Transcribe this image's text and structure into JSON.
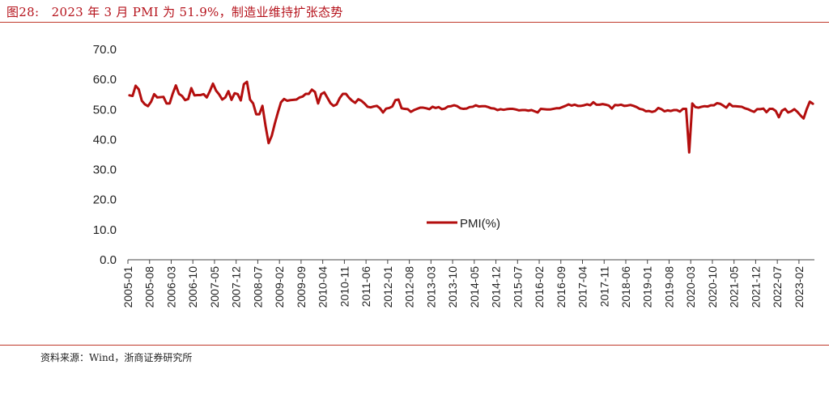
{
  "figure": {
    "title": "图28:　2023 年 3 月 PMI 为 51.9%，制造业维持扩张态势",
    "source": "资料来源：Wind，浙商证券研究所"
  },
  "chart_data": {
    "type": "line",
    "xlabel": "",
    "ylabel": "",
    "ylim": [
      0,
      70
    ],
    "y_ticks": [
      "70.0",
      "60.0",
      "50.0",
      "40.0",
      "30.0",
      "20.0",
      "10.0",
      "0.0"
    ],
    "x_ticks": [
      "2005-01",
      "2005-08",
      "2006-03",
      "2006-10",
      "2007-05",
      "2007-12",
      "2008-07",
      "2009-02",
      "2009-09",
      "2010-04",
      "2010-11",
      "2011-06",
      "2012-01",
      "2012-08",
      "2013-03",
      "2013-10",
      "2014-05",
      "2014-12",
      "2015-07",
      "2016-02",
      "2016-09",
      "2017-04",
      "2017-11",
      "2018-06",
      "2019-01",
      "2019-08",
      "2020-03",
      "2020-10",
      "2021-05",
      "2021-12",
      "2022-07",
      "2023-02"
    ],
    "grid": false,
    "legend_position": "center",
    "color": "#b30e0e",
    "series": [
      {
        "name": "PMI(%)",
        "x_start": "2005-01",
        "x_end": "2023-03",
        "values": [
          54.7,
          54.5,
          57.9,
          56.7,
          52.9,
          51.7,
          51.1,
          52.6,
          55.1,
          54.0,
          54.1,
          54.2,
          52.0,
          52.0,
          55.3,
          58.0,
          55.2,
          54.5,
          53.1,
          53.5,
          57.1,
          54.7,
          54.8,
          54.8,
          55.1,
          54.0,
          56.1,
          58.6,
          56.3,
          55.0,
          53.3,
          54.0,
          56.1,
          53.2,
          55.4,
          55.1,
          53.0,
          58.4,
          59.2,
          53.3,
          52.0,
          48.4,
          48.4,
          51.2,
          44.6,
          38.8,
          41.2,
          45.3,
          49.0,
          52.4,
          53.5,
          52.9,
          53.1,
          53.2,
          53.3,
          54.0,
          54.3,
          55.2,
          55.2,
          56.6,
          55.8,
          52.0,
          55.1,
          55.7,
          53.9,
          52.1,
          51.2,
          51.7,
          53.8,
          55.2,
          55.2,
          53.9,
          52.9,
          52.2,
          53.4,
          52.9,
          52.0,
          50.9,
          50.7,
          51.0,
          51.2,
          50.4,
          49.0,
          50.3,
          50.5,
          51.0,
          53.1,
          53.3,
          50.4,
          50.2,
          50.1,
          49.2,
          49.8,
          50.2,
          50.6,
          50.6,
          50.4,
          50.1,
          50.9,
          50.5,
          50.8,
          50.1,
          50.3,
          51.0,
          51.1,
          51.4,
          51.1,
          50.4,
          50.2,
          50.3,
          50.8,
          50.9,
          51.4,
          51.0,
          51.1,
          51.1,
          50.8,
          50.4,
          50.3,
          49.8,
          50.1,
          49.9,
          50.1,
          50.2,
          50.2,
          50.0,
          49.7,
          49.8,
          49.8,
          49.6,
          49.8,
          49.4,
          49.0,
          50.2,
          50.1,
          50.0,
          50.0,
          50.2,
          50.4,
          50.4,
          50.8,
          51.2,
          51.7,
          51.3,
          51.6,
          51.2,
          51.2,
          51.4,
          51.7,
          51.4,
          52.4,
          51.6,
          51.6,
          51.8,
          51.6,
          51.3,
          50.3,
          51.5,
          51.4,
          51.6,
          51.2,
          51.3,
          51.5,
          51.2,
          50.8,
          50.2,
          50.0,
          49.4,
          49.5,
          49.2,
          49.5,
          50.5,
          50.1,
          49.4,
          49.7,
          49.5,
          49.8,
          49.8,
          49.3,
          50.2,
          50.2,
          35.7,
          52.0,
          50.8,
          50.6,
          50.9,
          51.1,
          51.0,
          51.4,
          51.4,
          52.1,
          51.9,
          51.3,
          50.6,
          51.9,
          51.1,
          51.1,
          51.0,
          50.9,
          50.4,
          50.1,
          49.6,
          49.2,
          50.1,
          50.1,
          50.3,
          49.1,
          50.2,
          50.2,
          49.5,
          47.4,
          49.6,
          50.2,
          49.0,
          49.4,
          50.1,
          49.2,
          48.0,
          47.0,
          50.1,
          52.6,
          51.9
        ]
      }
    ]
  }
}
